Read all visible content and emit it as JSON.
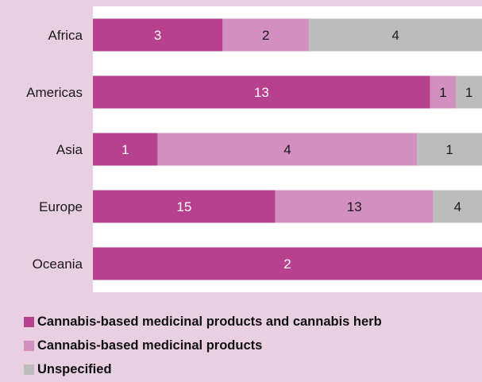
{
  "chart_data": {
    "type": "bar",
    "orientation": "horizontal",
    "stacked": true,
    "categories": [
      "Africa",
      "Americas",
      "Asia",
      "Europe",
      "Oceania"
    ],
    "series": [
      {
        "name": "Cannabis-based medicinal products and cannabis herb",
        "color": "#b8418f",
        "label_color": "#ffffff",
        "values": [
          3,
          13,
          1,
          15,
          2
        ]
      },
      {
        "name": "Cannabis-based medicinal products",
        "color": "#d38fc0",
        "label_color": "#1a1a1a",
        "values": [
          2,
          1,
          4,
          13,
          0
        ]
      },
      {
        "name": "Unspecified",
        "color": "#bcbcbc",
        "label_color": "#1a1a1a",
        "values": [
          4,
          1,
          1,
          4,
          0
        ]
      }
    ],
    "normalized_to_100_percent": true,
    "grid": false,
    "legend_position": "bottom-left",
    "plot_background": "#ffffff",
    "title": "",
    "xlabel": "",
    "ylabel": ""
  },
  "legend": {
    "items": [
      {
        "label": "Cannabis-based medicinal products and cannabis herb",
        "color": "#b8418f"
      },
      {
        "label": "Cannabis-based medicinal products",
        "color": "#d38fc0"
      },
      {
        "label": "Unspecified",
        "color": "#bcbcbc"
      }
    ]
  }
}
